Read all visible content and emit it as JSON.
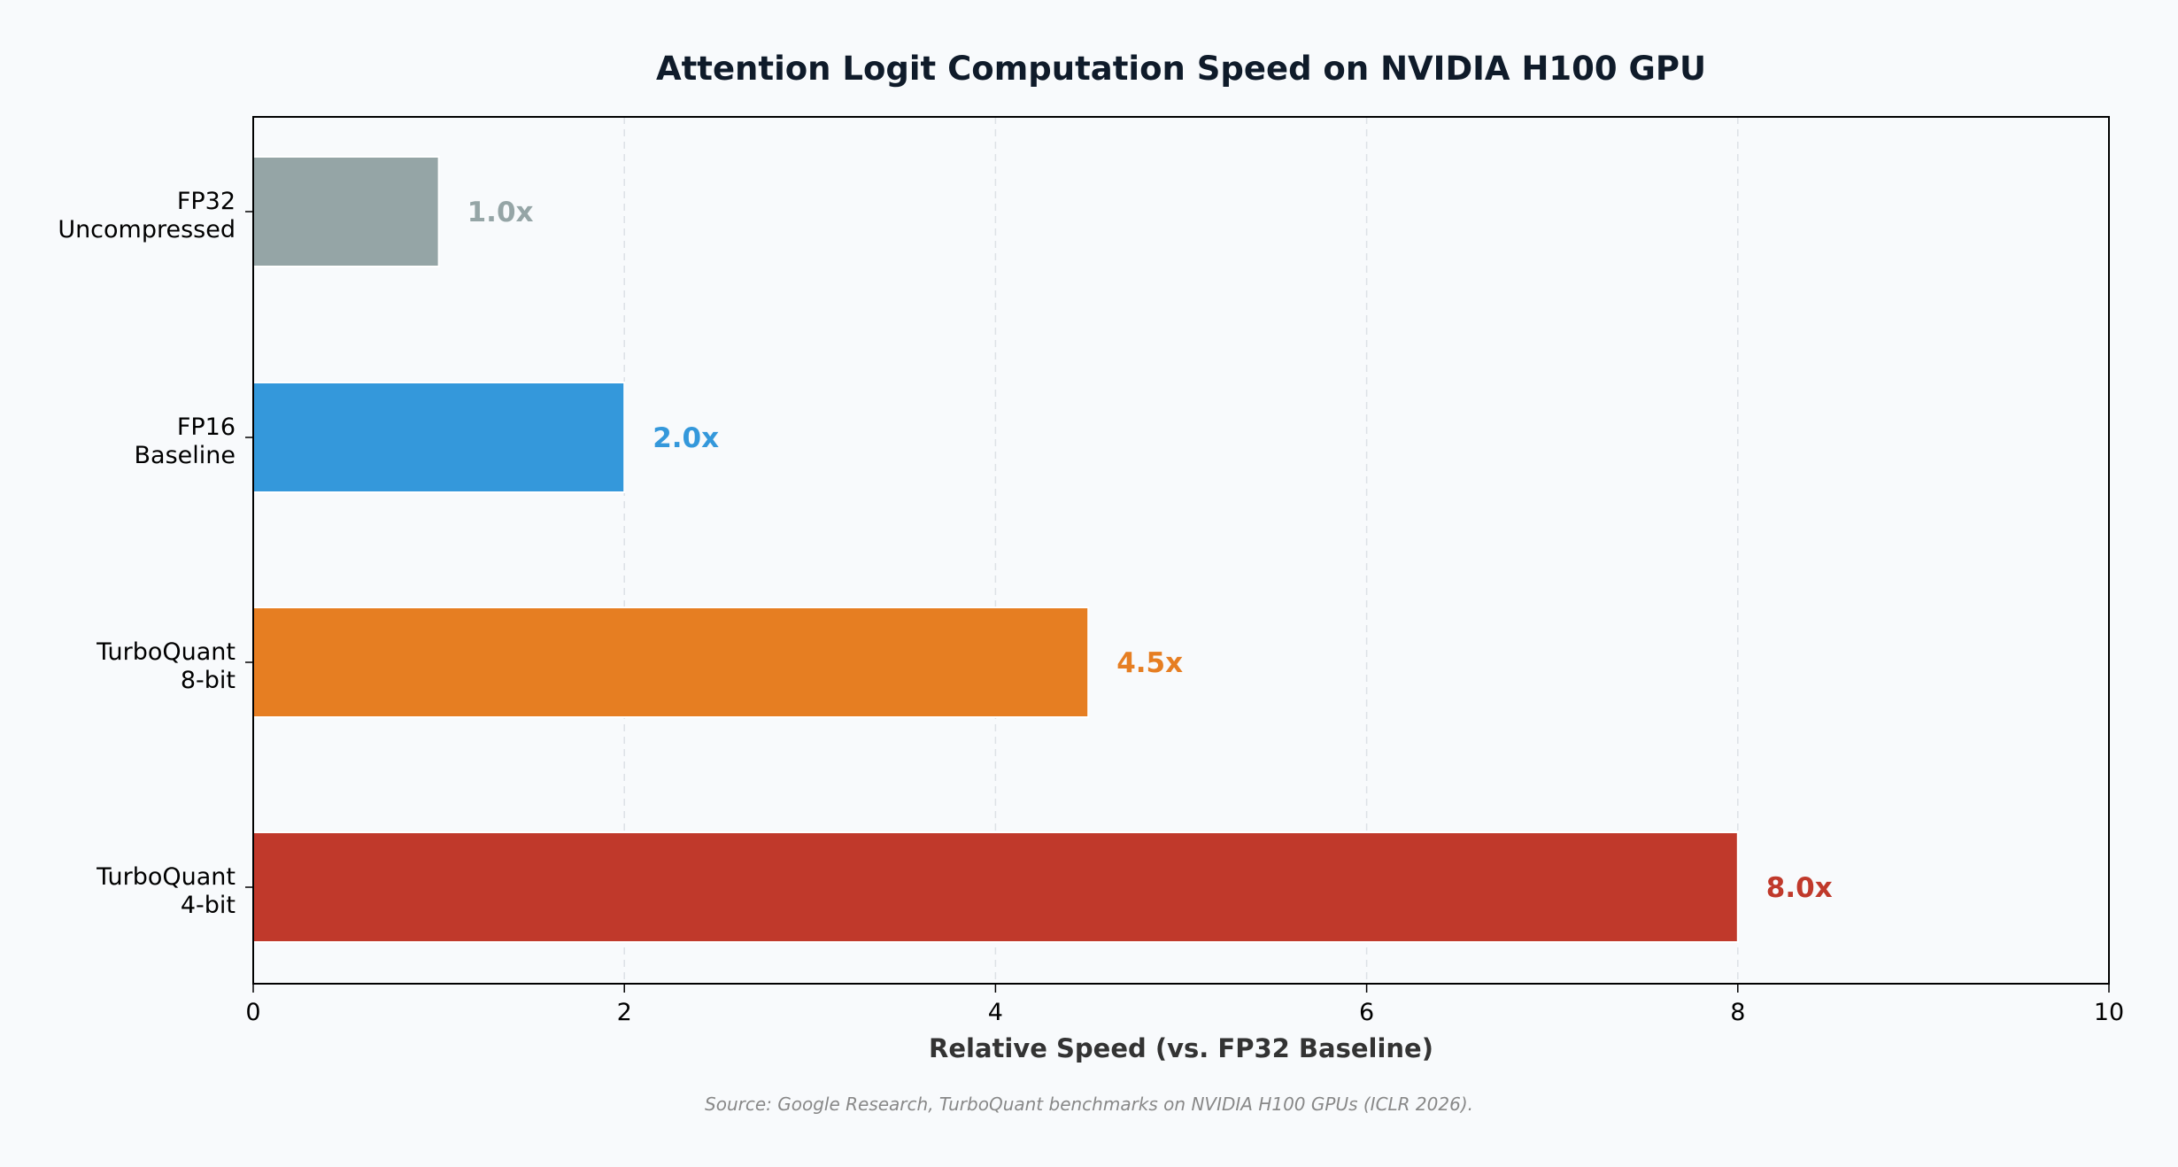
{
  "chart_data": {
    "type": "bar",
    "orientation": "horizontal",
    "title": "Attention Logit Computation Speed on NVIDIA H100 GPU",
    "xlabel": "Relative Speed (vs. FP32 Baseline)",
    "ylabel": "",
    "xlim": [
      0,
      10
    ],
    "xticks": [
      0,
      2,
      4,
      6,
      8,
      10
    ],
    "grid": "x-dashed",
    "categories": [
      [
        "FP32",
        "Uncompressed"
      ],
      [
        "FP16",
        "Baseline"
      ],
      [
        "TurboQuant",
        "8-bit"
      ],
      [
        "TurboQuant",
        "4-bit"
      ]
    ],
    "values": [
      1.0,
      2.0,
      4.5,
      8.0
    ],
    "data_labels": [
      "1.0x",
      "2.0x",
      "4.5x",
      "8.0x"
    ],
    "colors": [
      "#95a5a6",
      "#3498db",
      "#e67e22",
      "#c0392b"
    ],
    "source": "Source: Google Research, TurboQuant benchmarks on NVIDIA H100 GPUs (ICLR 2026)."
  }
}
